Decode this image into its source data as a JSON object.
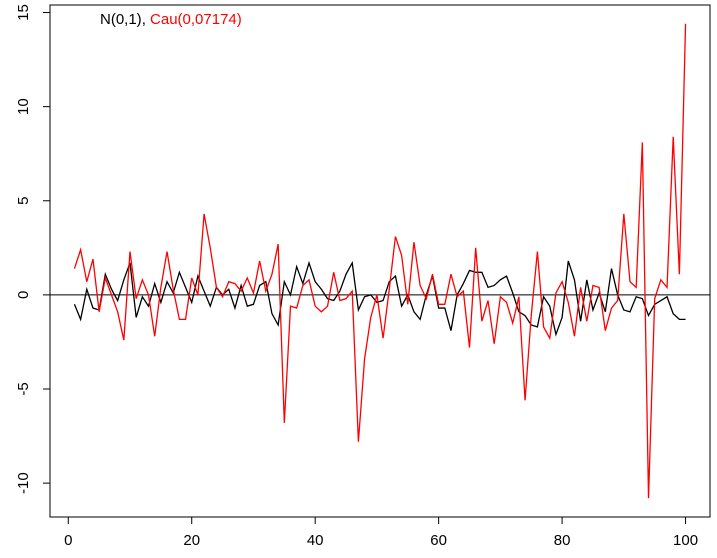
{
  "chart_data": {
    "type": "line",
    "x": [
      1,
      2,
      3,
      4,
      5,
      6,
      7,
      8,
      9,
      10,
      11,
      12,
      13,
      14,
      15,
      16,
      17,
      18,
      19,
      20,
      21,
      22,
      23,
      24,
      25,
      26,
      27,
      28,
      29,
      30,
      31,
      32,
      33,
      34,
      35,
      36,
      37,
      38,
      39,
      40,
      41,
      42,
      43,
      44,
      45,
      46,
      47,
      48,
      49,
      50,
      51,
      52,
      53,
      54,
      55,
      56,
      57,
      58,
      59,
      60,
      61,
      62,
      63,
      64,
      65,
      66,
      67,
      68,
      69,
      70,
      71,
      72,
      73,
      74,
      75,
      76,
      77,
      78,
      79,
      80,
      81,
      82,
      83,
      84,
      85,
      86,
      87,
      88,
      89,
      90,
      91,
      92,
      93,
      94,
      95,
      96,
      97,
      98,
      99,
      100
    ],
    "series": [
      {
        "name": "N(0,1)",
        "color": "#000000",
        "values": [
          -0.5,
          -1.3,
          0.3,
          -0.7,
          -0.8,
          1.1,
          0.3,
          -0.3,
          0.8,
          1.7,
          -1.2,
          -0.1,
          -0.6,
          0.6,
          -0.4,
          0.7,
          0.1,
          1.2,
          0.4,
          -0.4,
          1.0,
          0.2,
          -0.6,
          0.4,
          0.0,
          0.3,
          -0.7,
          0.5,
          -0.6,
          -0.5,
          0.5,
          0.7,
          -1.0,
          -1.6,
          0.7,
          0.0,
          1.5,
          0.6,
          1.7,
          0.7,
          0.3,
          -0.2,
          -0.3,
          0.2,
          1.1,
          1.7,
          -0.8,
          -0.1,
          0.0,
          -0.4,
          -0.3,
          0.7,
          1.0,
          -0.6,
          0.0,
          -0.9,
          -1.3,
          0.0,
          1.0,
          -0.7,
          -0.7,
          -1.9,
          0.0,
          0.6,
          1.3,
          1.2,
          1.2,
          0.4,
          0.5,
          0.8,
          1.0,
          0.1,
          -0.9,
          -1.1,
          -1.6,
          -1.7,
          -0.1,
          -0.6,
          -2.1,
          -1.2,
          1.8,
          0.8,
          -1.4,
          0.8,
          -0.8,
          0.1,
          -0.9,
          1.4,
          0.0,
          -0.8,
          -0.9,
          -0.1,
          -0.2,
          -1.1,
          -0.5,
          -0.3,
          -0.1,
          -1.0,
          -1.3,
          -1.3
        ]
      },
      {
        "name": "Cau(0,07174)",
        "color": "#ff0000",
        "values": [
          1.4,
          2.4,
          0.7,
          1.9,
          -0.9,
          0.9,
          0.0,
          -0.9,
          -2.4,
          2.3,
          -0.2,
          0.8,
          0.0,
          -2.2,
          0.4,
          2.3,
          0.3,
          -1.3,
          -1.3,
          0.9,
          0.0,
          4.3,
          2.5,
          0.4,
          -0.1,
          0.7,
          0.6,
          0.2,
          0.9,
          0.1,
          1.8,
          0.2,
          1.1,
          2.7,
          -6.8,
          -0.6,
          -0.7,
          0.5,
          0.8,
          -0.6,
          -0.9,
          -0.6,
          1.2,
          -0.3,
          -0.2,
          0.2,
          -7.8,
          -3.4,
          -1.2,
          0.0,
          -2.3,
          0.3,
          3.1,
          2.1,
          -0.5,
          2.8,
          0.5,
          -0.2,
          1.1,
          -0.5,
          -0.5,
          1.1,
          -0.1,
          0.2,
          -2.8,
          2.5,
          -1.4,
          -0.3,
          -2.6,
          -0.1,
          -0.4,
          -1.5,
          -0.1,
          -5.6,
          -1.1,
          2.3,
          -1.7,
          -2.3,
          0.1,
          0.7,
          -0.4,
          -2.2,
          0.4,
          -1.4,
          0.5,
          0.4,
          -1.9,
          -0.7,
          -0.3,
          4.3,
          0.7,
          0.4,
          8.1,
          -10.8,
          -0.2,
          0.8,
          0.4,
          8.4,
          1.1,
          14.4
        ]
      }
    ],
    "legend_separator": ", ",
    "hline": 0,
    "xlim": [
      -2.96,
      103.96
    ],
    "xticks": [
      0,
      20,
      40,
      60,
      80,
      100
    ],
    "ylim": [
      -11.8,
      15.4
    ],
    "yticks": [
      -10,
      -5,
      0,
      5,
      10,
      15
    ]
  }
}
